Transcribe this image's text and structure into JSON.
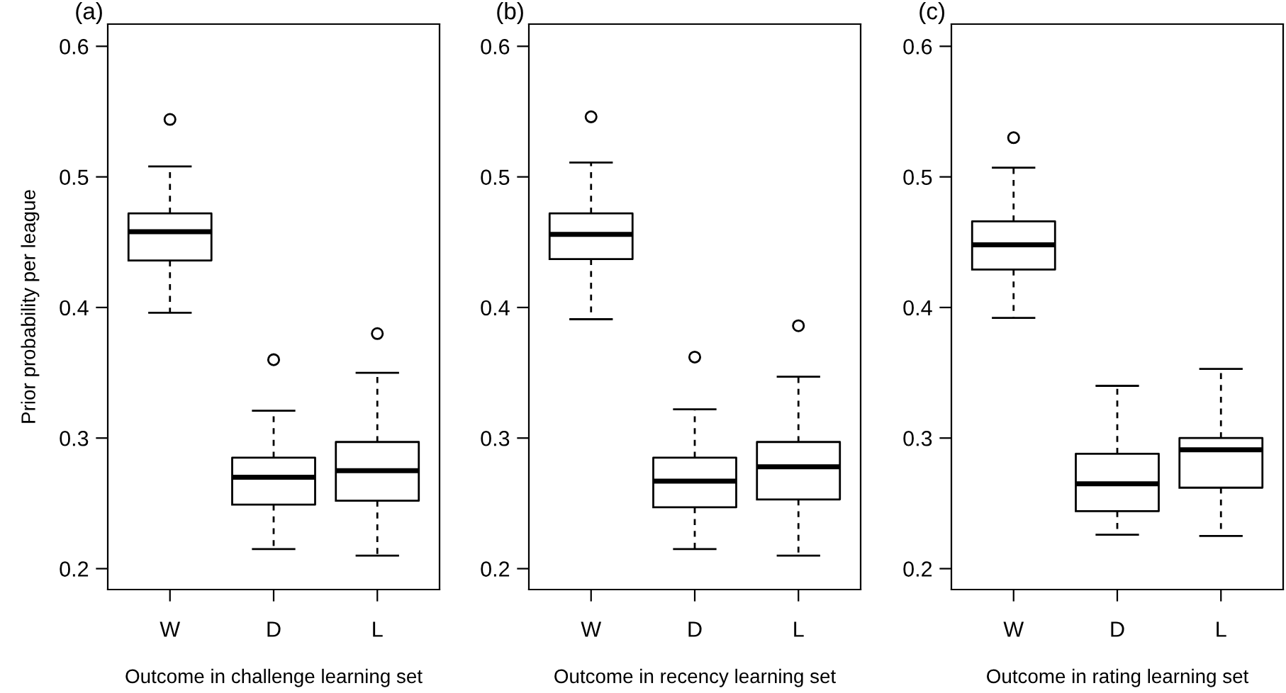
{
  "chart_data": [
    {
      "type": "box",
      "title": "(a)",
      "xlabel": "Outcome in challenge learning set",
      "ylabel": "Prior probability per league",
      "categories": [
        "W",
        "D",
        "L"
      ],
      "ylim": [
        0.184,
        0.617
      ],
      "yticks": [
        0.2,
        0.3,
        0.4,
        0.5,
        0.6
      ],
      "grid": false,
      "boxes": [
        {
          "low": 0.396,
          "q1": 0.436,
          "median": 0.458,
          "q3": 0.472,
          "high": 0.508,
          "outliers": [
            0.544
          ]
        },
        {
          "low": 0.215,
          "q1": 0.249,
          "median": 0.27,
          "q3": 0.285,
          "high": 0.321,
          "outliers": [
            0.36
          ]
        },
        {
          "low": 0.21,
          "q1": 0.252,
          "median": 0.275,
          "q3": 0.297,
          "high": 0.35,
          "outliers": [
            0.38
          ]
        }
      ]
    },
    {
      "type": "box",
      "title": "(b)",
      "xlabel": "Outcome in recency learning set",
      "categories": [
        "W",
        "D",
        "L"
      ],
      "ylim": [
        0.184,
        0.617
      ],
      "yticks": [
        0.2,
        0.3,
        0.4,
        0.5,
        0.6
      ],
      "grid": false,
      "boxes": [
        {
          "low": 0.391,
          "q1": 0.437,
          "median": 0.456,
          "q3": 0.472,
          "high": 0.511,
          "outliers": [
            0.546
          ]
        },
        {
          "low": 0.215,
          "q1": 0.247,
          "median": 0.267,
          "q3": 0.285,
          "high": 0.322,
          "outliers": [
            0.362
          ]
        },
        {
          "low": 0.21,
          "q1": 0.253,
          "median": 0.278,
          "q3": 0.297,
          "high": 0.347,
          "outliers": [
            0.386
          ]
        }
      ]
    },
    {
      "type": "box",
      "title": "(c)",
      "xlabel": "Outcome in rating learning set",
      "categories": [
        "W",
        "D",
        "L"
      ],
      "ylim": [
        0.184,
        0.617
      ],
      "yticks": [
        0.2,
        0.3,
        0.4,
        0.5,
        0.6
      ],
      "grid": false,
      "boxes": [
        {
          "low": 0.392,
          "q1": 0.429,
          "median": 0.448,
          "q3": 0.466,
          "high": 0.507,
          "outliers": [
            0.53
          ]
        },
        {
          "low": 0.226,
          "q1": 0.244,
          "median": 0.265,
          "q3": 0.288,
          "high": 0.34
        },
        {
          "low": 0.225,
          "q1": 0.262,
          "median": 0.291,
          "q3": 0.3,
          "high": 0.353
        }
      ]
    }
  ]
}
